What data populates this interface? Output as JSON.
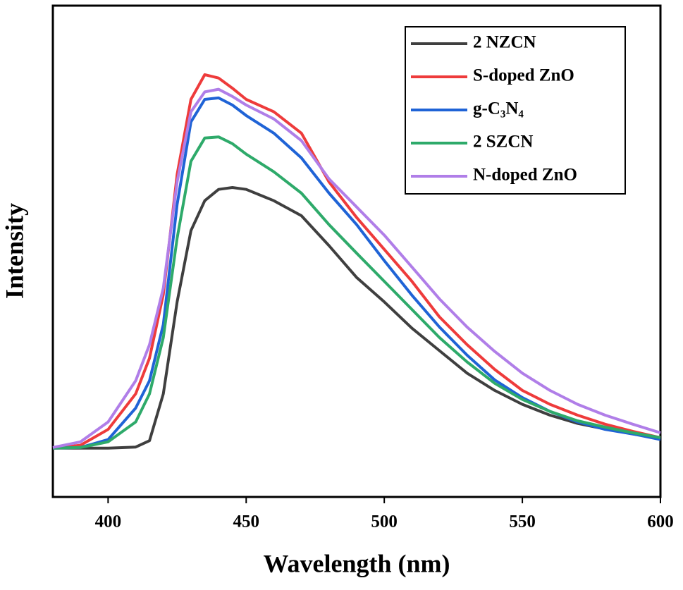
{
  "chart_data": {
    "type": "line",
    "x_label": "Wavelength (nm)",
    "y_label": "Intensity",
    "x": [
      380,
      390,
      400,
      410,
      415,
      420,
      425,
      430,
      435,
      440,
      445,
      450,
      460,
      470,
      480,
      490,
      500,
      510,
      520,
      530,
      540,
      550,
      560,
      570,
      580,
      590,
      600
    ],
    "series": [
      {
        "name": "2 NZCN",
        "color": "#3f3f3f",
        "values": [
          0,
          0,
          0,
          0.3,
          2,
          14.5,
          39,
          58,
          66,
          69,
          69.5,
          69,
          66,
          62,
          54,
          45.5,
          39,
          32,
          26,
          20,
          15.4,
          11.7,
          8.8,
          6.6,
          5.1,
          3.8,
          2.6
        ]
      },
      {
        "name": "S-doped ZnO",
        "color": "#ee3b3b",
        "values": [
          0,
          0.8,
          5,
          14.5,
          24,
          41,
          73,
          93,
          99.6,
          98.7,
          96,
          93,
          89.7,
          84,
          71,
          61.5,
          53,
          44.5,
          35,
          27.6,
          21,
          15.4,
          11.7,
          8.8,
          6.4,
          4.5,
          2.8
        ]
      },
      {
        "name": "g-C₃N₄",
        "color": "#1f63d6",
        "values": [
          0,
          0.2,
          2.3,
          10.7,
          18,
          33,
          65,
          87,
          93,
          93.4,
          91.5,
          88.7,
          84,
          77.4,
          68,
          59.6,
          50,
          40.8,
          32.3,
          24.8,
          18.2,
          13.5,
          9.8,
          7,
          5,
          3.8,
          2.3
        ]
      },
      {
        "name": "2 SZCN",
        "color": "#2eaa6a",
        "values": [
          0,
          0.2,
          1.7,
          7,
          14.5,
          29.5,
          56,
          76.5,
          82.7,
          83,
          81.2,
          78.4,
          73.7,
          68,
          59.6,
          52,
          44.5,
          37,
          29.5,
          23,
          17.3,
          13,
          9.8,
          7.3,
          5.6,
          4.1,
          2.8
        ]
      },
      {
        "name": "N-doped ZnO",
        "color": "#b07ee8",
        "values": [
          0.2,
          1.7,
          7,
          18,
          27.6,
          42.7,
          71,
          89.7,
          95,
          95.7,
          93.8,
          91.5,
          87.8,
          82,
          71.8,
          64.3,
          56.8,
          48.3,
          39.8,
          32.3,
          25.8,
          20,
          15.4,
          11.7,
          8.8,
          6.4,
          4.1
        ]
      }
    ],
    "xlim": [
      380,
      600
    ],
    "xticks": [
      400,
      450,
      500,
      550,
      600
    ],
    "ylim": [
      -13,
      118
    ],
    "legend": "upper right",
    "grid": false
  }
}
